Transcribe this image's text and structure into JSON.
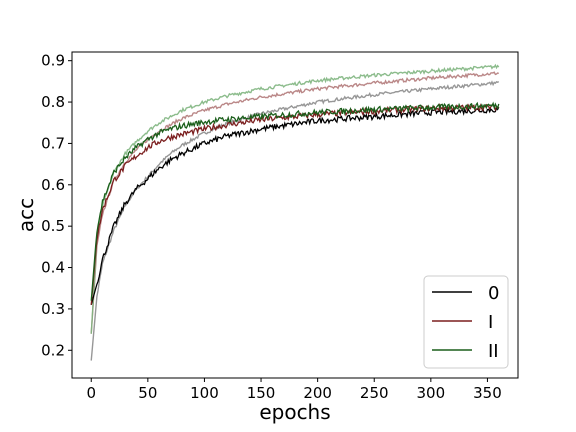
{
  "chart_data": {
    "type": "line",
    "title": "",
    "xlabel": "epochs",
    "ylabel": "acc",
    "xlim": [
      -17,
      377
    ],
    "ylim": [
      0.133,
      0.921
    ],
    "x_ticks": [
      0,
      50,
      100,
      150,
      200,
      250,
      300,
      350
    ],
    "y_ticks": [
      0.2,
      0.3,
      0.4,
      0.5,
      0.6,
      0.7,
      0.8,
      0.9
    ],
    "grid": false,
    "legend": {
      "position": "bottom-right",
      "entries": [
        "0",
        "I",
        "II"
      ]
    },
    "series": [
      {
        "name": "0",
        "color": "#000000",
        "x": [
          0,
          5,
          10,
          20,
          30,
          40,
          50,
          60,
          70,
          80,
          100,
          120,
          150,
          200,
          250,
          300,
          360
        ],
        "values": [
          0.31,
          0.36,
          0.42,
          0.5,
          0.555,
          0.59,
          0.615,
          0.64,
          0.66,
          0.675,
          0.7,
          0.718,
          0.735,
          0.755,
          0.765,
          0.775,
          0.782
        ]
      },
      {
        "name": "I",
        "color": "#7b1f1f",
        "x": [
          0,
          5,
          10,
          20,
          30,
          40,
          50,
          60,
          70,
          80,
          100,
          120,
          150,
          200,
          250,
          300,
          360
        ],
        "values": [
          0.31,
          0.47,
          0.54,
          0.61,
          0.645,
          0.67,
          0.69,
          0.705,
          0.715,
          0.722,
          0.735,
          0.745,
          0.757,
          0.77,
          0.778,
          0.785,
          0.788
        ]
      },
      {
        "name": "II",
        "color": "#1a5e1a",
        "x": [
          0,
          5,
          10,
          20,
          30,
          40,
          50,
          60,
          70,
          80,
          100,
          120,
          150,
          200,
          250,
          300,
          360
        ],
        "values": [
          0.32,
          0.49,
          0.56,
          0.63,
          0.665,
          0.69,
          0.71,
          0.725,
          0.735,
          0.742,
          0.752,
          0.758,
          0.765,
          0.775,
          0.782,
          0.787,
          0.792
        ]
      },
      {
        "name": "",
        "color": "#8c8c8c",
        "x": [
          0,
          5,
          10,
          20,
          30,
          40,
          50,
          60,
          70,
          80,
          100,
          120,
          150,
          200,
          250,
          300,
          360
        ],
        "values": [
          0.175,
          0.33,
          0.41,
          0.49,
          0.55,
          0.59,
          0.62,
          0.65,
          0.675,
          0.695,
          0.725,
          0.748,
          0.772,
          0.8,
          0.818,
          0.832,
          0.847
        ]
      },
      {
        "name": "",
        "color": "#b37a7a",
        "x": [
          0,
          5,
          10,
          20,
          30,
          40,
          50,
          60,
          70,
          80,
          100,
          120,
          150,
          200,
          250,
          300,
          360
        ],
        "values": [
          0.24,
          0.45,
          0.53,
          0.61,
          0.655,
          0.685,
          0.71,
          0.73,
          0.745,
          0.76,
          0.78,
          0.795,
          0.812,
          0.832,
          0.846,
          0.858,
          0.87
        ]
      },
      {
        "name": "",
        "color": "#7fb57f",
        "x": [
          0,
          5,
          10,
          20,
          30,
          40,
          50,
          60,
          70,
          80,
          100,
          120,
          150,
          200,
          250,
          300,
          360
        ],
        "values": [
          0.24,
          0.47,
          0.55,
          0.63,
          0.675,
          0.705,
          0.73,
          0.75,
          0.765,
          0.78,
          0.8,
          0.815,
          0.832,
          0.852,
          0.865,
          0.875,
          0.886
        ]
      }
    ]
  }
}
